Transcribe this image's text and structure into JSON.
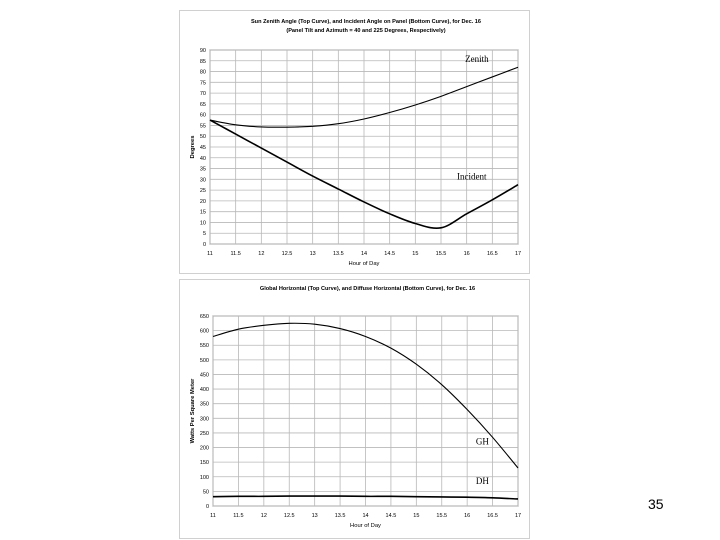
{
  "slide": {
    "number": "35"
  },
  "colors": {
    "grid": "#b8b8b8",
    "frame": "#808080",
    "curve": "#000000",
    "text": "#000000"
  },
  "chart_data": [
    {
      "type": "line",
      "title": "Sun Zenith Angle (Top Curve), and Incident Angle on Panel (Bottom Curve), for Dec. 16",
      "subtitle": "(Panel Tilt and Azimuth = 40 and 225 Degrees, Respectively)",
      "xlabel": "Hour of Day",
      "ylabel": "Degrees",
      "xlim": [
        11,
        17
      ],
      "ylim": [
        0,
        90
      ],
      "xticks": [
        "11",
        "11.5",
        "12",
        "12.5",
        "13",
        "13.5",
        "14",
        "14.5",
        "15",
        "15.5",
        "16",
        "16.5",
        "17"
      ],
      "yticks": [
        "0",
        "5",
        "10",
        "15",
        "20",
        "25",
        "30",
        "35",
        "40",
        "45",
        "50",
        "55",
        "60",
        "65",
        "70",
        "75",
        "80",
        "85",
        "90"
      ],
      "grid": true,
      "series": [
        {
          "name": "Zenith",
          "x": [
            11,
            11.5,
            12,
            12.5,
            13,
            13.5,
            14,
            14.5,
            15,
            15.5,
            16,
            16.5,
            17
          ],
          "values": [
            57.5,
            55.3,
            54.3,
            54.2,
            54.6,
            55.8,
            58,
            61,
            64.5,
            68.5,
            73,
            77.5,
            82
          ]
        },
        {
          "name": "Incident",
          "x": [
            11,
            11.5,
            12,
            12.5,
            13,
            13.5,
            14,
            14.5,
            15,
            15.5,
            16,
            16.5,
            17
          ],
          "values": [
            57.5,
            51,
            44.5,
            38,
            31.5,
            25.5,
            19.5,
            14,
            9.5,
            7.5,
            14,
            20.5,
            27.5
          ]
        }
      ],
      "annotations": [
        "Zenith",
        "Incident"
      ]
    },
    {
      "type": "line",
      "title": "Global Horizontal (Top Curve), and Diffuse Horizontal (Bottom Curve), for Dec. 16",
      "xlabel": "Hour of Day",
      "ylabel": "Watts Per Square Meter",
      "xlim": [
        11,
        17
      ],
      "ylim": [
        0,
        650
      ],
      "xticks": [
        "11",
        "11.5",
        "12",
        "12.5",
        "13",
        "13.5",
        "14",
        "14.5",
        "15",
        "15.5",
        "16",
        "16.5",
        "17"
      ],
      "yticks": [
        "0",
        "50",
        "100",
        "150",
        "200",
        "250",
        "300",
        "350",
        "400",
        "450",
        "500",
        "550",
        "600",
        "650"
      ],
      "grid": true,
      "series": [
        {
          "name": "GH",
          "x": [
            11,
            11.5,
            12,
            12.5,
            13,
            13.5,
            14,
            14.5,
            15,
            15.5,
            16,
            16.5,
            17
          ],
          "values": [
            580,
            605,
            618,
            625,
            622,
            607,
            580,
            540,
            485,
            415,
            330,
            235,
            130
          ]
        },
        {
          "name": "DH",
          "x": [
            11,
            11.5,
            12,
            12.5,
            13,
            13.5,
            14,
            14.5,
            15,
            15.5,
            16,
            16.5,
            17
          ],
          "values": [
            32,
            33,
            33,
            34,
            34,
            34,
            33,
            33,
            32,
            31,
            30,
            28,
            24
          ]
        }
      ],
      "annotations": [
        "GH",
        "DH"
      ]
    }
  ]
}
